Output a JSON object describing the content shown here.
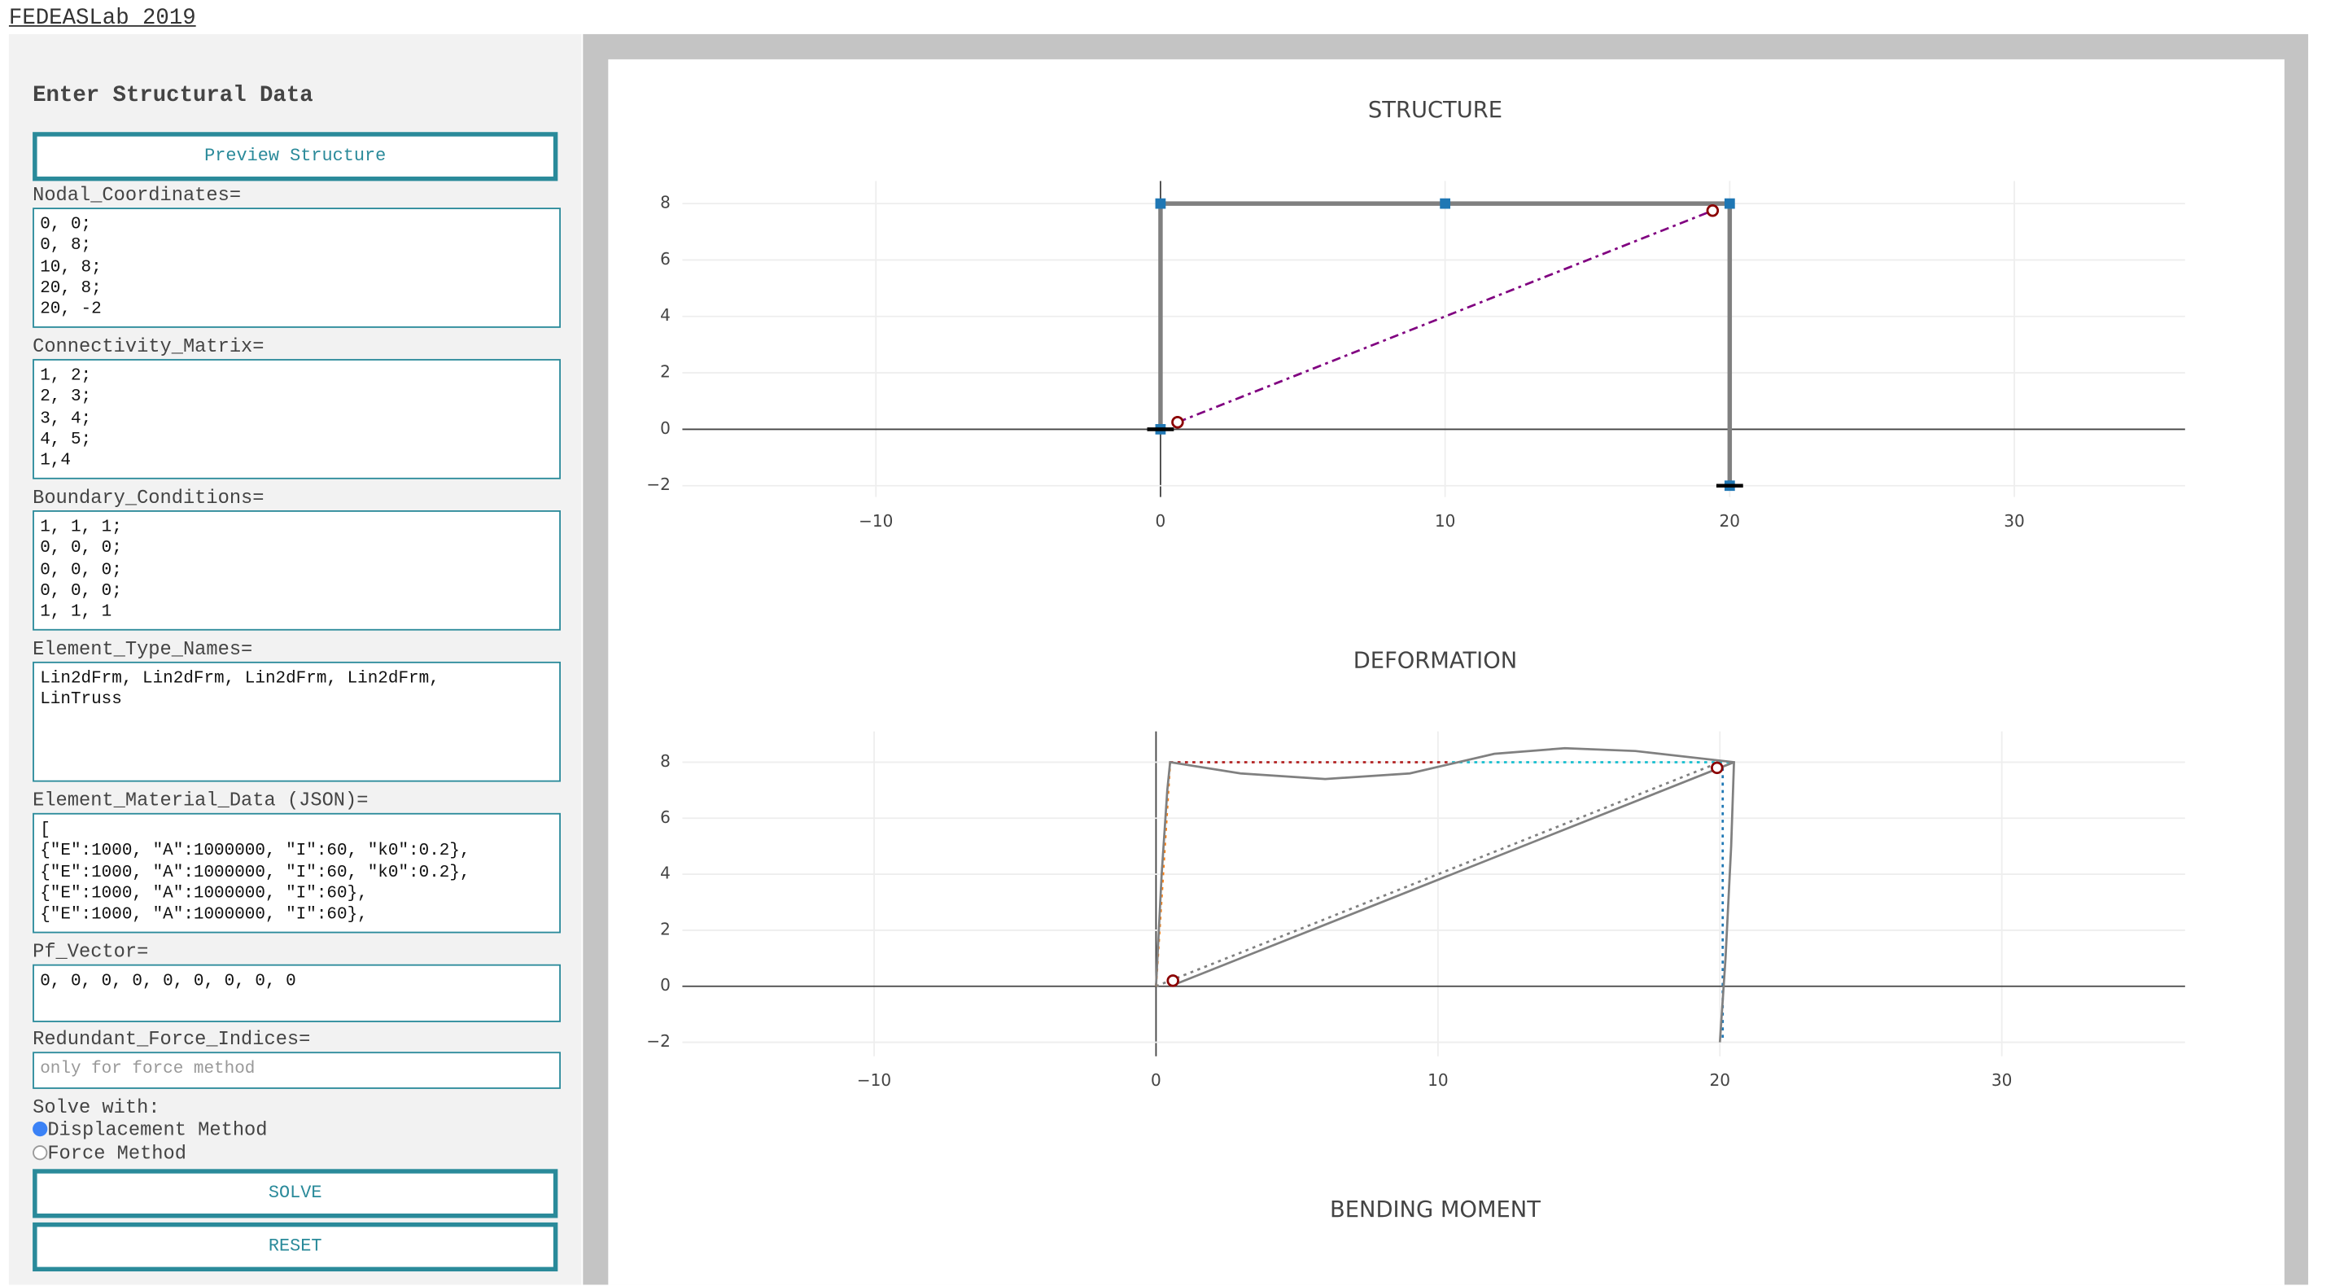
{
  "header": {
    "title": "FEDEASLab 2019"
  },
  "form": {
    "heading": "Enter Structural Data",
    "preview_button": "Preview Structure",
    "fields": [
      {
        "label": "Nodal_Coordinates=",
        "value": "0, 0;\n0, 8;\n10, 8;\n20, 8;\n20, -2"
      },
      {
        "label": "Connectivity_Matrix=",
        "value": "1, 2;\n2, 3;\n3, 4;\n4, 5;\n1,4"
      },
      {
        "label": "Boundary_Conditions=",
        "value": "1, 1, 1;\n0, 0, 0;\n0, 0, 0;\n0, 0, 0;\n1, 1, 1"
      },
      {
        "label": "Element_Type_Names=",
        "value": "Lin2dFrm, Lin2dFrm, Lin2dFrm, Lin2dFrm,\nLinTruss"
      },
      {
        "label": "Element_Material_Data (JSON)=",
        "value": "[\n{\"E\":1000, \"A\":1000000, \"I\":60, \"k0\":0.2},\n{\"E\":1000, \"A\":1000000, \"I\":60, \"k0\":0.2},\n{\"E\":1000, \"A\":1000000, \"I\":60},\n{\"E\":1000, \"A\":1000000, \"I\":60},"
      },
      {
        "label": "Pf_Vector=",
        "value": "0, 0, 0, 0, 0, 0, 0, 0, 0"
      },
      {
        "label": "Redundant_Force_Indices=",
        "placeholder": "only for force method"
      }
    ],
    "solve_label": "Solve with:",
    "methods": [
      "Displacement Method",
      "Force Method"
    ],
    "solve_button": "SOLVE",
    "reset_button": "RESET"
  },
  "chart_data": [
    {
      "type": "line",
      "title": "STRUCTURE",
      "xlim": [
        -16.8,
        36
      ],
      "ylim": [
        -2.4,
        8.8
      ],
      "xticks": [
        {
          "value": -10,
          "label": "−10"
        },
        0,
        10,
        20,
        30
      ],
      "yticks": [
        {
          "value": -2,
          "label": "−2"
        },
        0,
        2,
        4,
        6,
        8
      ],
      "grid": true,
      "series": [
        {
          "color": "#808080",
          "width": 3,
          "x": [
            0,
            0,
            10,
            20,
            20
          ],
          "y": [
            0,
            8,
            8,
            8,
            -2
          ]
        },
        {
          "color": "#800080",
          "dash": "dashdot",
          "x": [
            0.6,
            19.4
          ],
          "y": [
            0.25,
            7.75
          ]
        },
        {
          "mode": "markers",
          "symbol": "square",
          "color": "#1f77b4",
          "x": [
            0,
            0,
            10,
            20,
            20
          ],
          "y": [
            0,
            8,
            8,
            8,
            -2
          ]
        },
        {
          "mode": "markers",
          "symbol": "line-ew",
          "color": "#000000",
          "x": [
            0,
            20
          ],
          "y": [
            0,
            -2
          ]
        },
        {
          "mode": "markers",
          "symbol": "circle-open",
          "color": "#8b0000",
          "x": [
            0.6,
            19.4
          ],
          "y": [
            0.25,
            7.75
          ]
        }
      ]
    },
    {
      "type": "line",
      "title": "DEFORMATION",
      "xlim": [
        -16.8,
        36.5
      ],
      "ylim": [
        -2.5,
        9.1
      ],
      "xticks": [
        {
          "value": -10,
          "label": "−10"
        },
        0,
        10,
        20,
        30
      ],
      "yticks": [
        {
          "value": -2,
          "label": "−2"
        },
        0,
        2,
        4,
        6,
        8
      ],
      "grid": true,
      "series": [
        {
          "color": "#808080",
          "dash": "dot",
          "x": [
            0,
            20
          ],
          "y": [
            0,
            8
          ]
        },
        {
          "color": "#ff7f0e",
          "dash": "dot",
          "x": [
            0,
            0.5
          ],
          "y": [
            0,
            8
          ]
        },
        {
          "color": "#b22222",
          "dash": "dot",
          "x": [
            0.5,
            10.5
          ],
          "y": [
            8,
            8
          ]
        },
        {
          "color": "#17becf",
          "dash": "dot",
          "x": [
            10.5,
            20.5
          ],
          "y": [
            8,
            8
          ]
        },
        {
          "color": "#1f77b4",
          "dash": "dot",
          "x": [
            20.1,
            20.1
          ],
          "y": [
            7.8,
            -2
          ]
        },
        {
          "color": "#808080",
          "width": 1.5,
          "x": [
            0,
            0.2,
            0.4,
            0.5,
            3,
            6,
            9,
            12,
            14.5,
            17,
            20.5,
            20.4,
            20.2,
            20
          ],
          "y": [
            0,
            4,
            7,
            8,
            7.6,
            7.4,
            7.6,
            8.3,
            8.5,
            8.4,
            8,
            5,
            1,
            -2
          ]
        },
        {
          "color": "#808080",
          "width": 1.5,
          "x": [
            0.5,
            20.5
          ],
          "y": [
            0,
            8
          ]
        },
        {
          "mode": "markers",
          "symbol": "circle-open",
          "color": "#8b0000",
          "x": [
            0.6,
            19.9
          ],
          "y": [
            0.2,
            7.8
          ]
        }
      ]
    },
    {
      "type": "line",
      "title": "BENDING MOMENT"
    }
  ]
}
